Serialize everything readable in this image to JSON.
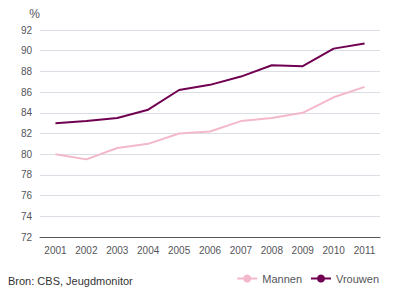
{
  "chart_data": {
    "type": "line",
    "ylabel": "%",
    "annotation": "Bron: CBS, Jeugdmonitor",
    "categories": [
      "2001",
      "2002",
      "2003",
      "2004",
      "2005",
      "2006",
      "2007",
      "2008",
      "2009",
      "2010",
      "2011"
    ],
    "series": [
      {
        "name": "Mannen",
        "color": "#f4b8cb",
        "values": [
          80.0,
          79.5,
          80.6,
          81.0,
          82.0,
          82.2,
          83.2,
          83.5,
          84.0,
          85.5,
          86.5
        ]
      },
      {
        "name": "Vrouwen",
        "color": "#700050",
        "values": [
          83.0,
          83.2,
          83.5,
          84.3,
          86.2,
          86.7,
          87.5,
          88.6,
          88.5,
          90.2,
          90.7
        ]
      }
    ],
    "ylim": [
      72,
      92
    ],
    "yticks": [
      72,
      74,
      76,
      78,
      80,
      82,
      84,
      86,
      88,
      90,
      92
    ],
    "grid": true,
    "legend": "bottom"
  }
}
